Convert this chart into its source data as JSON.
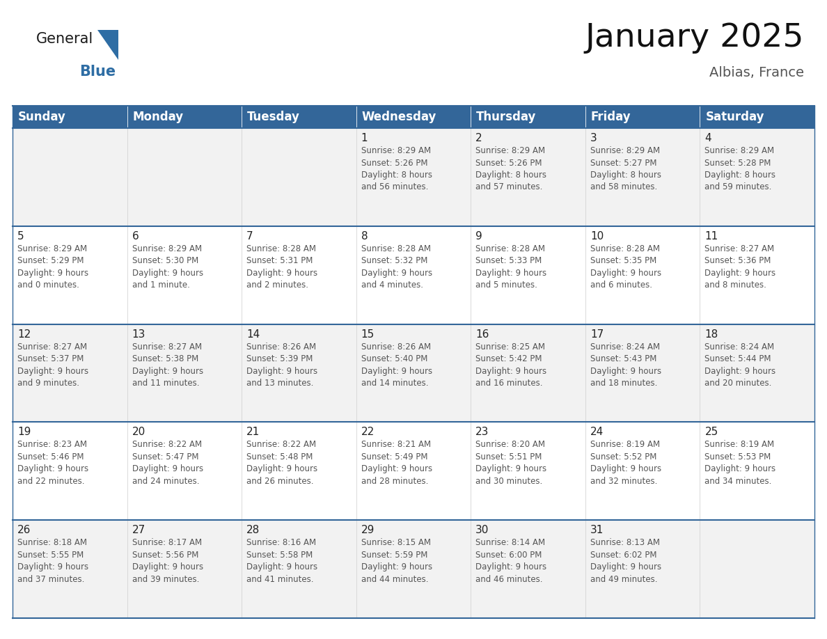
{
  "title": "January 2025",
  "subtitle": "Albias, France",
  "header_bg": "#336699",
  "header_text_color": "#ffffff",
  "cell_bg": "#ffffff",
  "cell_bg_alt": "#f2f2f2",
  "border_color": "#336699",
  "grid_color": "#cccccc",
  "text_color": "#333333",
  "day_number_color": "#222222",
  "days_of_week": [
    "Sunday",
    "Monday",
    "Tuesday",
    "Wednesday",
    "Thursday",
    "Friday",
    "Saturday"
  ],
  "weeks": [
    [
      {
        "day": "",
        "text": ""
      },
      {
        "day": "",
        "text": ""
      },
      {
        "day": "",
        "text": ""
      },
      {
        "day": "1",
        "text": "Sunrise: 8:29 AM\nSunset: 5:26 PM\nDaylight: 8 hours\nand 56 minutes."
      },
      {
        "day": "2",
        "text": "Sunrise: 8:29 AM\nSunset: 5:26 PM\nDaylight: 8 hours\nand 57 minutes."
      },
      {
        "day": "3",
        "text": "Sunrise: 8:29 AM\nSunset: 5:27 PM\nDaylight: 8 hours\nand 58 minutes."
      },
      {
        "day": "4",
        "text": "Sunrise: 8:29 AM\nSunset: 5:28 PM\nDaylight: 8 hours\nand 59 minutes."
      }
    ],
    [
      {
        "day": "5",
        "text": "Sunrise: 8:29 AM\nSunset: 5:29 PM\nDaylight: 9 hours\nand 0 minutes."
      },
      {
        "day": "6",
        "text": "Sunrise: 8:29 AM\nSunset: 5:30 PM\nDaylight: 9 hours\nand 1 minute."
      },
      {
        "day": "7",
        "text": "Sunrise: 8:28 AM\nSunset: 5:31 PM\nDaylight: 9 hours\nand 2 minutes."
      },
      {
        "day": "8",
        "text": "Sunrise: 8:28 AM\nSunset: 5:32 PM\nDaylight: 9 hours\nand 4 minutes."
      },
      {
        "day": "9",
        "text": "Sunrise: 8:28 AM\nSunset: 5:33 PM\nDaylight: 9 hours\nand 5 minutes."
      },
      {
        "day": "10",
        "text": "Sunrise: 8:28 AM\nSunset: 5:35 PM\nDaylight: 9 hours\nand 6 minutes."
      },
      {
        "day": "11",
        "text": "Sunrise: 8:27 AM\nSunset: 5:36 PM\nDaylight: 9 hours\nand 8 minutes."
      }
    ],
    [
      {
        "day": "12",
        "text": "Sunrise: 8:27 AM\nSunset: 5:37 PM\nDaylight: 9 hours\nand 9 minutes."
      },
      {
        "day": "13",
        "text": "Sunrise: 8:27 AM\nSunset: 5:38 PM\nDaylight: 9 hours\nand 11 minutes."
      },
      {
        "day": "14",
        "text": "Sunrise: 8:26 AM\nSunset: 5:39 PM\nDaylight: 9 hours\nand 13 minutes."
      },
      {
        "day": "15",
        "text": "Sunrise: 8:26 AM\nSunset: 5:40 PM\nDaylight: 9 hours\nand 14 minutes."
      },
      {
        "day": "16",
        "text": "Sunrise: 8:25 AM\nSunset: 5:42 PM\nDaylight: 9 hours\nand 16 minutes."
      },
      {
        "day": "17",
        "text": "Sunrise: 8:24 AM\nSunset: 5:43 PM\nDaylight: 9 hours\nand 18 minutes."
      },
      {
        "day": "18",
        "text": "Sunrise: 8:24 AM\nSunset: 5:44 PM\nDaylight: 9 hours\nand 20 minutes."
      }
    ],
    [
      {
        "day": "19",
        "text": "Sunrise: 8:23 AM\nSunset: 5:46 PM\nDaylight: 9 hours\nand 22 minutes."
      },
      {
        "day": "20",
        "text": "Sunrise: 8:22 AM\nSunset: 5:47 PM\nDaylight: 9 hours\nand 24 minutes."
      },
      {
        "day": "21",
        "text": "Sunrise: 8:22 AM\nSunset: 5:48 PM\nDaylight: 9 hours\nand 26 minutes."
      },
      {
        "day": "22",
        "text": "Sunrise: 8:21 AM\nSunset: 5:49 PM\nDaylight: 9 hours\nand 28 minutes."
      },
      {
        "day": "23",
        "text": "Sunrise: 8:20 AM\nSunset: 5:51 PM\nDaylight: 9 hours\nand 30 minutes."
      },
      {
        "day": "24",
        "text": "Sunrise: 8:19 AM\nSunset: 5:52 PM\nDaylight: 9 hours\nand 32 minutes."
      },
      {
        "day": "25",
        "text": "Sunrise: 8:19 AM\nSunset: 5:53 PM\nDaylight: 9 hours\nand 34 minutes."
      }
    ],
    [
      {
        "day": "26",
        "text": "Sunrise: 8:18 AM\nSunset: 5:55 PM\nDaylight: 9 hours\nand 37 minutes."
      },
      {
        "day": "27",
        "text": "Sunrise: 8:17 AM\nSunset: 5:56 PM\nDaylight: 9 hours\nand 39 minutes."
      },
      {
        "day": "28",
        "text": "Sunrise: 8:16 AM\nSunset: 5:58 PM\nDaylight: 9 hours\nand 41 minutes."
      },
      {
        "day": "29",
        "text": "Sunrise: 8:15 AM\nSunset: 5:59 PM\nDaylight: 9 hours\nand 44 minutes."
      },
      {
        "day": "30",
        "text": "Sunrise: 8:14 AM\nSunset: 6:00 PM\nDaylight: 9 hours\nand 46 minutes."
      },
      {
        "day": "31",
        "text": "Sunrise: 8:13 AM\nSunset: 6:02 PM\nDaylight: 9 hours\nand 49 minutes."
      },
      {
        "day": "",
        "text": ""
      }
    ]
  ],
  "logo_general_color": "#1a1a1a",
  "logo_blue_color": "#2e6da4",
  "title_fontsize": 34,
  "subtitle_fontsize": 14,
  "header_fontsize": 12,
  "day_number_fontsize": 11,
  "cell_text_fontsize": 8.5
}
